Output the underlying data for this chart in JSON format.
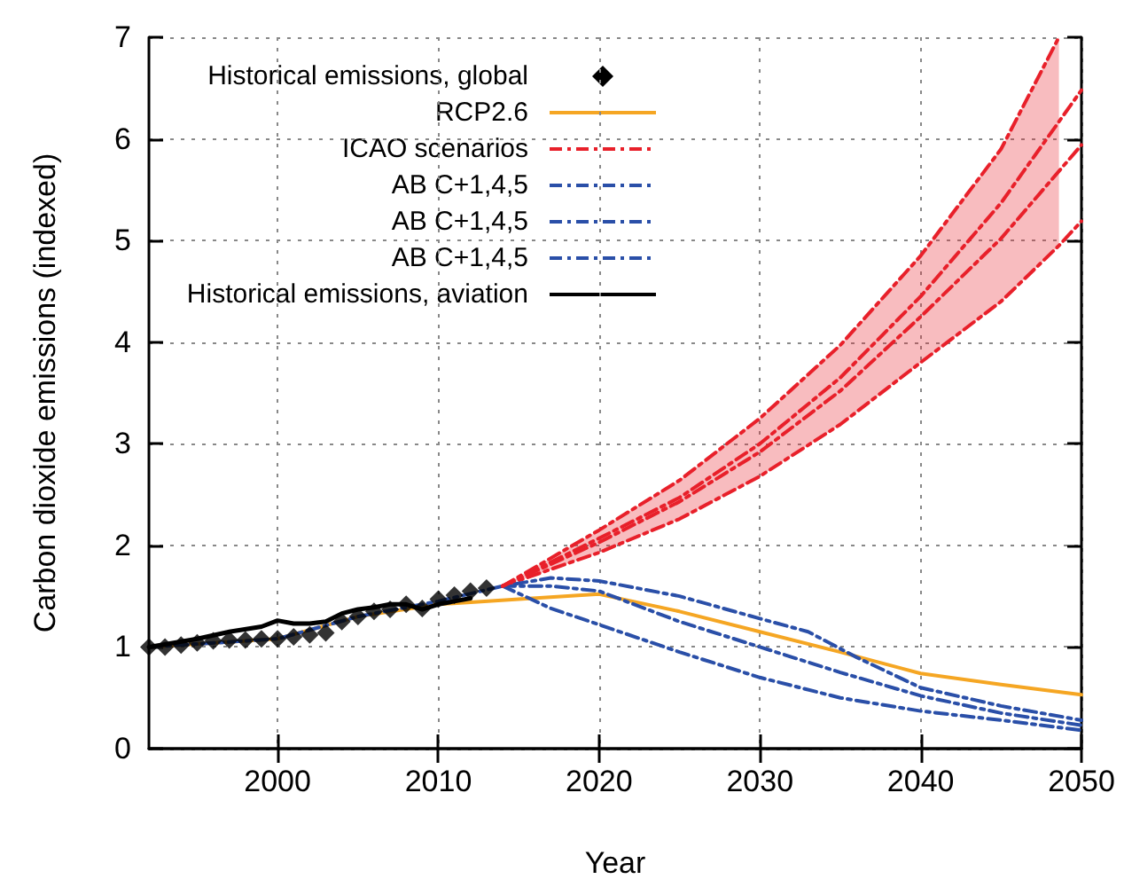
{
  "chart_data": {
    "type": "line",
    "xlabel": "Year",
    "ylabel": "Carbon dioxide emissions (indexed)",
    "xlim": [
      1992,
      2050
    ],
    "xticks": [
      2000,
      2010,
      2020,
      2030,
      2040,
      2050
    ],
    "ylim": [
      0,
      7
    ],
    "yticks": [
      0,
      1,
      2,
      3,
      4,
      5,
      6,
      7
    ],
    "grid": true,
    "legend": "top left",
    "series": [
      {
        "name": "Historical emissions, global",
        "type": "scatter",
        "marker": "diamond",
        "color": "#000000",
        "x": [
          1992,
          1993,
          1994,
          1995,
          1996,
          1997,
          1998,
          1999,
          2000,
          2001,
          2002,
          2003,
          2004,
          2005,
          2006,
          2007,
          2008,
          2009,
          2010,
          2011,
          2012,
          2013
        ],
        "values": [
          1.0,
          1.0,
          1.02,
          1.04,
          1.06,
          1.07,
          1.07,
          1.08,
          1.08,
          1.1,
          1.12,
          1.14,
          1.25,
          1.3,
          1.35,
          1.37,
          1.42,
          1.38,
          1.47,
          1.51,
          1.55,
          1.58
        ]
      },
      {
        "name": "RCP2.6",
        "line_style": "solid",
        "color": "#f5a623",
        "x": [
          1992,
          1995,
          2000,
          2005,
          2010,
          2015,
          2020,
          2025,
          2030,
          2035,
          2040,
          2045,
          2050
        ],
        "values": [
          1.0,
          1.03,
          1.08,
          1.3,
          1.42,
          1.47,
          1.52,
          1.35,
          1.15,
          0.95,
          0.74,
          0.63,
          0.53
        ]
      },
      {
        "name": "ICAO scenarios",
        "line_style": "dashed",
        "color": "#e8202a",
        "x": [
          2014,
          2020,
          2025,
          2030,
          2035,
          2040,
          2045,
          2048.6,
          2050
        ],
        "values": [
          1.6,
          1.93,
          2.26,
          2.68,
          3.19,
          3.8,
          4.4,
          4.95,
          5.19
        ],
        "lower": [
          1.6,
          1.93,
          2.26,
          2.68,
          3.19,
          3.8,
          4.4,
          4.95,
          null
        ],
        "upper": [
          1.6,
          2.15,
          2.64,
          3.25,
          3.97,
          4.85,
          5.9,
          7.0,
          null
        ]
      },
      {
        "name": "AB C+1,4,5",
        "line_style": "dashed",
        "color": "#2a4fa8",
        "x": [
          1992,
          2000,
          2005,
          2010,
          2014,
          2017,
          2020,
          2025,
          2030,
          2033,
          2036,
          2040,
          2045,
          2050
        ],
        "values": [
          1.0,
          1.08,
          1.3,
          1.45,
          1.6,
          1.68,
          1.65,
          1.5,
          1.28,
          1.15,
          0.9,
          0.6,
          0.42,
          0.28
        ]
      },
      {
        "name": "AB C+1,4,5",
        "line_style": "dashed",
        "color": "#2a4fa8",
        "x": [
          2014,
          2017,
          2020,
          2025,
          2030,
          2035,
          2040,
          2045,
          2050
        ],
        "values": [
          1.6,
          1.6,
          1.55,
          1.25,
          1.0,
          0.75,
          0.52,
          0.35,
          0.23
        ]
      },
      {
        "name": "AB C+1,4,5",
        "line_style": "dashed",
        "color": "#2a4fa8",
        "x": [
          2014,
          2017,
          2020,
          2025,
          2030,
          2035,
          2040,
          2045,
          2050
        ],
        "values": [
          1.6,
          1.38,
          1.22,
          0.95,
          0.7,
          0.5,
          0.37,
          0.28,
          0.18
        ]
      },
      {
        "name": "Historical emissions, aviation",
        "line_style": "solid",
        "color": "#000000",
        "x": [
          1992,
          1995,
          1997,
          1999,
          2000,
          2001,
          2002,
          2003,
          2004,
          2005,
          2006,
          2007,
          2008,
          2009,
          2010,
          2011,
          2012
        ],
        "values": [
          1.0,
          1.08,
          1.15,
          1.2,
          1.26,
          1.23,
          1.23,
          1.25,
          1.33,
          1.37,
          1.39,
          1.42,
          1.42,
          1.37,
          1.42,
          1.45,
          1.48
        ]
      },
      {
        "line_style": "dashed",
        "color": "#e8202a",
        "x": [
          2014,
          2020,
          2025,
          2030,
          2035,
          2040,
          2045,
          2048.6
        ],
        "values": [
          1.6,
          2.15,
          2.64,
          3.25,
          3.97,
          4.85,
          5.9,
          7.0
        ]
      },
      {
        "line_style": "dashed",
        "color": "#e8202a",
        "x": [
          2014,
          2020,
          2025,
          2030,
          2035,
          2040,
          2045,
          2050
        ],
        "values": [
          1.6,
          2.07,
          2.47,
          3.0,
          3.65,
          4.45,
          5.37,
          6.48
        ]
      },
      {
        "line_style": "dashed",
        "color": "#e8202a",
        "x": [
          2014,
          2020,
          2025,
          2030,
          2035,
          2040,
          2045,
          2050
        ],
        "values": [
          1.6,
          2.03,
          2.43,
          2.92,
          3.52,
          4.25,
          5.02,
          5.94
        ]
      }
    ]
  }
}
